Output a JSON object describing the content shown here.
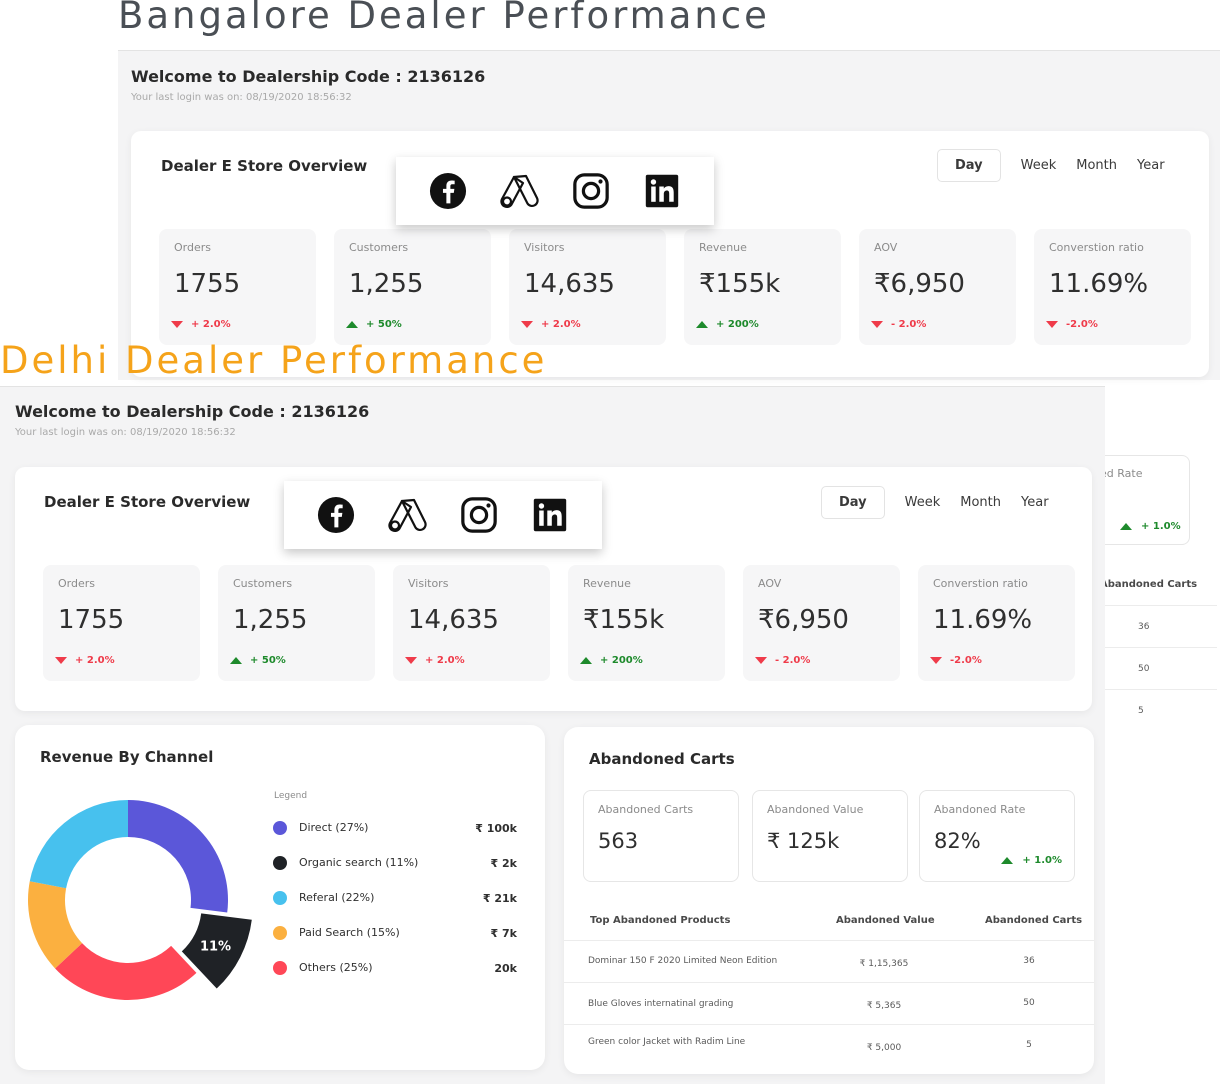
{
  "bangalore": {
    "heading": "Bangalore Dealer Performance",
    "welcome": "Welcome to Dealership Code : 2136126",
    "last_login": "Your last login was on: 08/19/2020 18:56:32",
    "overview_title": "Dealer E Store Overview",
    "periods": [
      "Day",
      "Week",
      "Month",
      "Year"
    ],
    "stats": [
      {
        "label": "Orders",
        "value": "1755",
        "delta": "+ 2.0%",
        "trend": "down"
      },
      {
        "label": "Customers",
        "value": "1,255",
        "delta": "+ 50%",
        "trend": "up"
      },
      {
        "label": "Visitors",
        "value": "14,635",
        "delta": "+ 2.0%",
        "trend": "down"
      },
      {
        "label": "Revenue",
        "value": "₹155k",
        "delta": "+ 200%",
        "trend": "up"
      },
      {
        "label": "AOV",
        "value": "₹6,950",
        "delta": "- 2.0%",
        "trend": "down"
      },
      {
        "label": "Converstion ratio",
        "value": "11.69%",
        "delta": "-2.0%",
        "trend": "down"
      }
    ]
  },
  "behind_panel": {
    "rate_label_partial": "ed Rate",
    "rate_delta": "+ 1.0%",
    "carts_header_partial": "Abandoned Carts",
    "carts": [
      "36",
      "50",
      "5"
    ]
  },
  "delhi": {
    "heading": "Delhi Dealer Performance",
    "welcome": "Welcome to Dealership Code : 2136126",
    "last_login": "Your last login was on: 08/19/2020 18:56:32",
    "overview_title": "Dealer E Store Overview",
    "periods": [
      "Day",
      "Week",
      "Month",
      "Year"
    ],
    "stats": [
      {
        "label": "Orders",
        "value": "1755",
        "delta": "+ 2.0%",
        "trend": "down"
      },
      {
        "label": "Customers",
        "value": "1,255",
        "delta": "+ 50%",
        "trend": "up"
      },
      {
        "label": "Visitors",
        "value": "14,635",
        "delta": "+ 2.0%",
        "trend": "down"
      },
      {
        "label": "Revenue",
        "value": "₹155k",
        "delta": "+ 200%",
        "trend": "up"
      },
      {
        "label": "AOV",
        "value": "₹6,950",
        "delta": "- 2.0%",
        "trend": "down"
      },
      {
        "label": "Converstion ratio",
        "value": "11.69%",
        "delta": "-2.0%",
        "trend": "down"
      }
    ],
    "revenue_by_channel": {
      "title": "Revenue By Channel",
      "legend_title": "Legend",
      "callout": "11%",
      "items": [
        {
          "name": "Direct (27%)",
          "value": "₹ 100k",
          "color": "#5b57d9"
        },
        {
          "name": "Organic search (11%)",
          "value": "₹ 2k",
          "color": "#1f2226"
        },
        {
          "name": "Referal  (22%)",
          "value": "₹ 21k",
          "color": "#47c1ee"
        },
        {
          "name": "Paid Search (15%)",
          "value": "₹ 7k",
          "color": "#fbb040"
        },
        {
          "name": "Others (25%)",
          "value": "20k",
          "color": "#ff4757"
        }
      ]
    },
    "abandoned": {
      "title": "Abandoned Carts",
      "boxes": [
        {
          "label": "Abandoned Carts",
          "value": "563"
        },
        {
          "label": "Abandoned Value",
          "value": "₹ 125k"
        },
        {
          "label": "Abandoned Rate",
          "value": "82%",
          "delta": "+ 1.0%"
        }
      ],
      "columns": [
        "Top Abandoned Products",
        "Abandoned Value",
        "Abandoned Carts"
      ],
      "rows": [
        {
          "product": "Dominar 150 F 2020 Limited Neon Edition",
          "value": "₹ 1,15,365",
          "carts": "36"
        },
        {
          "product": "Blue Gloves internatinal grading",
          "value": "₹ 5,365",
          "carts": "50"
        },
        {
          "product": "Green color Jacket with Radim Line",
          "value": "₹ 5,000",
          "carts": "5"
        }
      ]
    }
  },
  "social_icons": [
    "facebook-icon",
    "google-ads-icon",
    "instagram-icon",
    "linkedin-icon"
  ],
  "chart_data": {
    "type": "pie",
    "title": "Revenue By Channel",
    "categories": [
      "Direct",
      "Organic search",
      "Referal",
      "Paid Search",
      "Others"
    ],
    "values": [
      27,
      11,
      22,
      15,
      25
    ],
    "colors": [
      "#5b57d9",
      "#1f2226",
      "#47c1ee",
      "#fbb040",
      "#ff4757"
    ]
  }
}
